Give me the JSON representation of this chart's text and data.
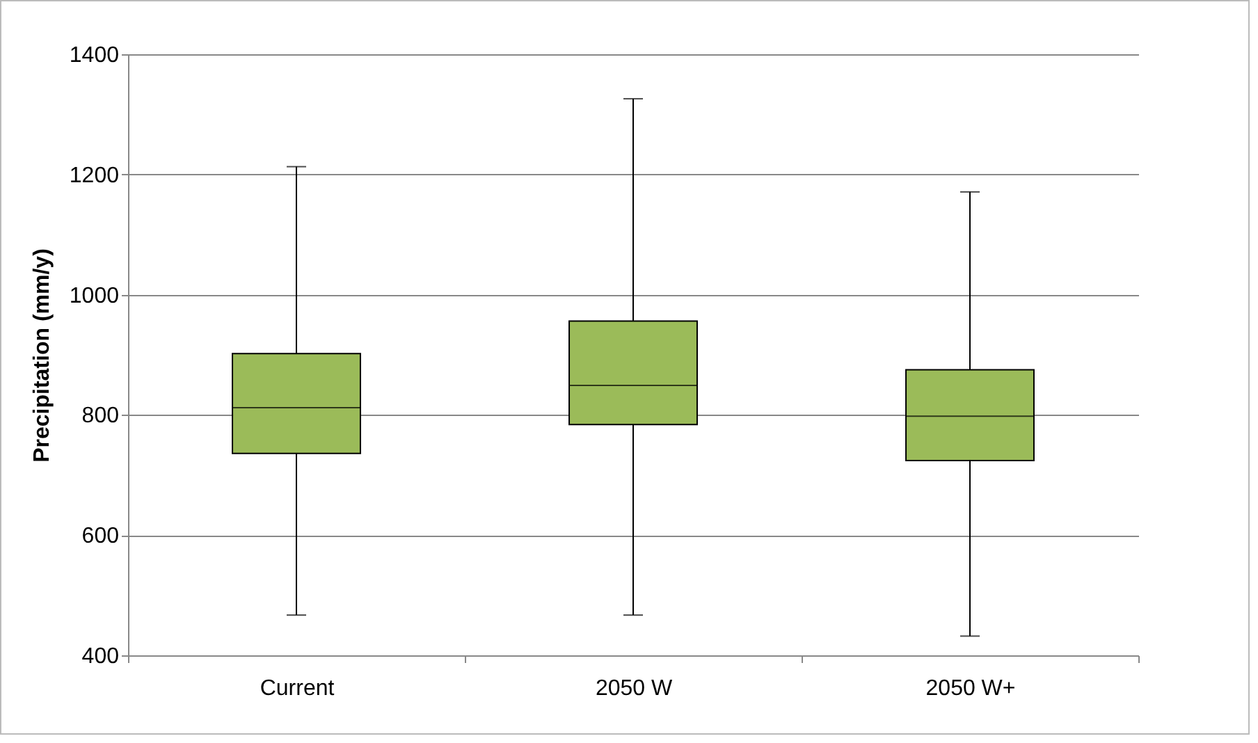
{
  "chart_data": {
    "type": "box",
    "ylabel": "Precipitation (mm/y)",
    "categories": [
      "Current",
      "2050 W",
      "2050 W+"
    ],
    "boxes": [
      {
        "low": 467,
        "q1": 736,
        "median": 812,
        "q3": 902,
        "high": 1213
      },
      {
        "low": 467,
        "q1": 784,
        "median": 849,
        "q3": 956,
        "high": 1326
      },
      {
        "low": 432,
        "q1": 724,
        "median": 798,
        "q3": 875,
        "high": 1171
      }
    ],
    "color": "#9bbb59",
    "ylim": [
      400,
      1400
    ],
    "yticks": [
      400,
      600,
      800,
      1000,
      1200,
      1400
    ],
    "grid": "y"
  }
}
